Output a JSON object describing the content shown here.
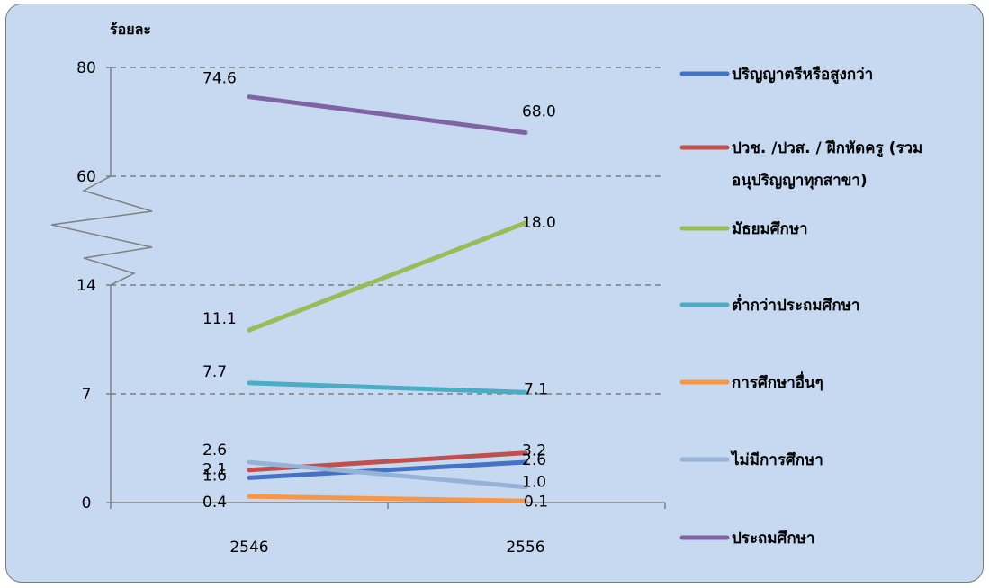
{
  "chart_data": {
    "type": "line",
    "ylabel": "ร้อยละ",
    "x": [
      "2546",
      "2556"
    ],
    "y_ticks": [
      "0",
      "7",
      "14",
      "60",
      "80"
    ],
    "axis_break": true,
    "grid": "dashed horizontal",
    "legend_position": "right",
    "series": [
      {
        "name": "ปริญญาตรีหรือสูงกว่า",
        "color": "#4472c4",
        "values": [
          1.6,
          2.6
        ],
        "labels": [
          "1.6",
          "2.6"
        ]
      },
      {
        "name": "ปวช. /ปวส. / ฝึกหัดครู (รวม อนุปริญญาทุกสาขา)",
        "legend_lines": [
          "ปวช. /ปวส. / ฝึกหัดครู (รวม",
          "อนุปริญญาทุกสาขา)"
        ],
        "color": "#c0504d",
        "values": [
          2.1,
          3.2
        ],
        "labels": [
          "2.1",
          "3.2"
        ]
      },
      {
        "name": "มัธยมศึกษา",
        "color": "#9bbb59",
        "values": [
          11.1,
          18.0
        ],
        "labels": [
          "11.1",
          "18.0"
        ]
      },
      {
        "name": "ต่ำกว่าประถมศึกษา",
        "color": "#4bacc6",
        "values": [
          7.7,
          7.1
        ],
        "labels": [
          "7.7",
          "7.1"
        ]
      },
      {
        "name": "การศึกษาอื่นๆ",
        "color": "#f79646",
        "values": [
          0.4,
          0.1
        ],
        "labels": [
          "0.4",
          "0.1"
        ]
      },
      {
        "name": "ไม่มีการศึกษา",
        "color": "#95b3d7",
        "values": [
          2.6,
          1.0
        ],
        "labels": [
          "2.6",
          "1.0"
        ]
      },
      {
        "name": "ประถมศึกษา",
        "color": "#8064a2",
        "values": [
          74.6,
          68.0
        ],
        "labels": [
          "74.6",
          "68.0"
        ]
      }
    ]
  }
}
